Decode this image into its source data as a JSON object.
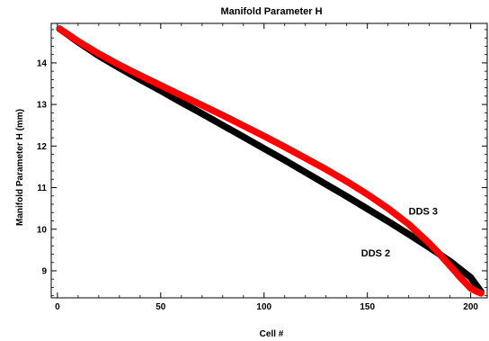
{
  "chart_data": {
    "type": "line",
    "title": "Manifold Parameter H",
    "xlabel": "Cell #",
    "ylabel": "Manifold Parameter H (mm)",
    "xlim": [
      -3,
      208
    ],
    "ylim": [
      8.35,
      14.95
    ],
    "x_ticks": [
      0,
      50,
      100,
      150,
      200
    ],
    "y_ticks": [
      9,
      10,
      11,
      12,
      13,
      14
    ],
    "grid": false,
    "legend": "none",
    "series": [
      {
        "name": "DDS 2",
        "color": "#000000",
        "x": [
          1,
          5,
          10,
          20,
          30,
          40,
          50,
          60,
          70,
          80,
          90,
          100,
          110,
          120,
          130,
          140,
          150,
          160,
          170,
          180,
          190,
          200,
          205
        ],
        "y": [
          14.82,
          14.68,
          14.5,
          14.17,
          13.88,
          13.6,
          13.33,
          13.05,
          12.78,
          12.5,
          12.22,
          11.94,
          11.66,
          11.37,
          11.08,
          10.79,
          10.49,
          10.19,
          9.88,
          9.56,
          9.23,
          8.84,
          8.5
        ]
      },
      {
        "name": "DDS 3",
        "color": "#ff0000",
        "x": [
          1,
          5,
          10,
          20,
          30,
          40,
          50,
          60,
          70,
          80,
          90,
          100,
          110,
          120,
          130,
          140,
          150,
          160,
          170,
          180,
          185,
          190,
          195,
          200,
          203,
          205
        ],
        "y": [
          14.82,
          14.69,
          14.52,
          14.22,
          13.95,
          13.7,
          13.46,
          13.22,
          12.98,
          12.74,
          12.49,
          12.24,
          11.98,
          11.71,
          11.44,
          11.15,
          10.84,
          10.5,
          10.12,
          9.66,
          9.4,
          9.12,
          8.84,
          8.58,
          8.5,
          8.46
        ]
      }
    ],
    "annotations": [
      {
        "text": "DDS 3",
        "x": 170,
        "y": 10.35
      },
      {
        "text": "DDS 2",
        "x": 147,
        "y": 9.35
      }
    ]
  }
}
